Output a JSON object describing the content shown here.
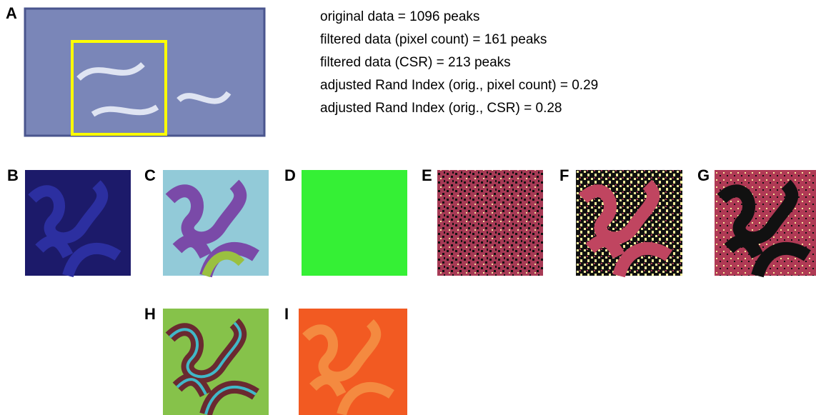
{
  "panels": {
    "a": "A",
    "b": "B",
    "c": "C",
    "d": "D",
    "e": "E",
    "f": "F",
    "g": "G",
    "h": "H",
    "i": "I"
  },
  "stats": [
    "original data = 1096 peaks",
    "filtered data (pixel count) = 161 peaks",
    "filtered data (CSR) = 213 peaks",
    "adjusted Rand Index (orig., pixel count)  = 0.29",
    "adjusted Rand Index (orig., CSR)  = 0.28"
  ]
}
